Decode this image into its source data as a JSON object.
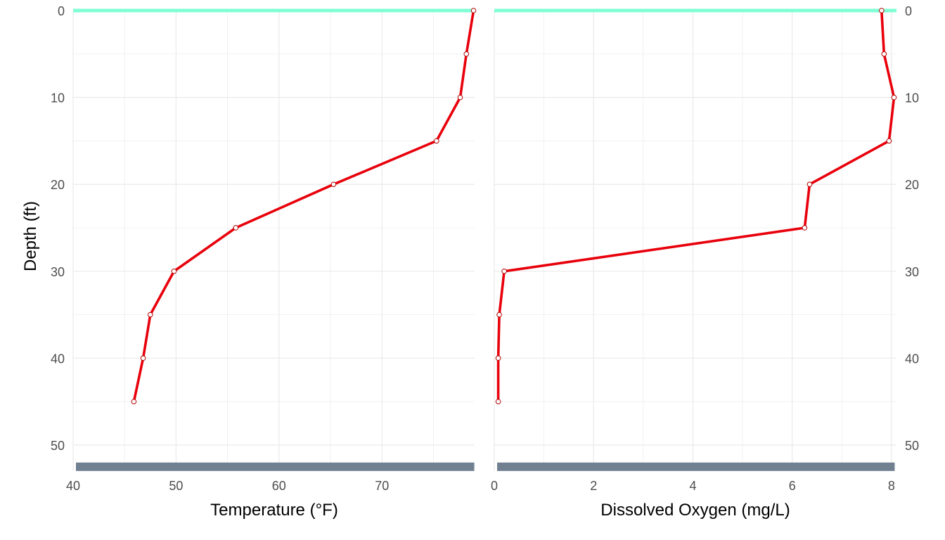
{
  "chart_data": [
    {
      "type": "line",
      "xlabel": "Temperature (°F)",
      "ylabel": "Depth (ft)",
      "xlim": [
        40,
        79
      ],
      "ylim": [
        53,
        0
      ],
      "y_reversed": true,
      "x_ticks": [
        "40",
        "50",
        "60",
        "70"
      ],
      "y_ticks": [
        "0",
        "10",
        "20",
        "30",
        "40",
        "50"
      ],
      "series": [
        {
          "x": [
            78.9,
            78.2,
            77.6,
            75.3,
            65.3,
            55.8,
            49.8,
            47.5,
            46.8,
            45.9
          ],
          "y": [
            0,
            5,
            10,
            15,
            20,
            25,
            30,
            35,
            40,
            45
          ]
        }
      ],
      "surface_line_depth": 0,
      "bottom_band_depth": 52.5,
      "grid": true,
      "y_axis_side": "left"
    },
    {
      "type": "line",
      "xlabel": "Dissolved Oxygen (mg/L)",
      "ylabel": "",
      "xlim": [
        0,
        8.1
      ],
      "ylim": [
        53,
        0
      ],
      "y_reversed": true,
      "x_ticks": [
        "0",
        "2",
        "4",
        "6",
        "8"
      ],
      "y_ticks": [
        "0",
        "10",
        "20",
        "30",
        "40",
        "50"
      ],
      "series": [
        {
          "x": [
            7.8,
            7.85,
            8.05,
            7.95,
            6.35,
            6.25,
            0.2,
            0.1,
            0.08,
            0.08
          ],
          "y": [
            0,
            5,
            10,
            15,
            20,
            25,
            30,
            35,
            40,
            45
          ]
        }
      ],
      "surface_line_depth": 0,
      "bottom_band_depth": 52.5,
      "grid": true,
      "y_axis_side": "right"
    }
  ],
  "colors": {
    "line": "#e8000b",
    "point_fill": "#ffffff",
    "point_stroke": "#b00000",
    "surface": "#7fffd4",
    "bottom": "#708090",
    "grid": "#ebebeb"
  }
}
